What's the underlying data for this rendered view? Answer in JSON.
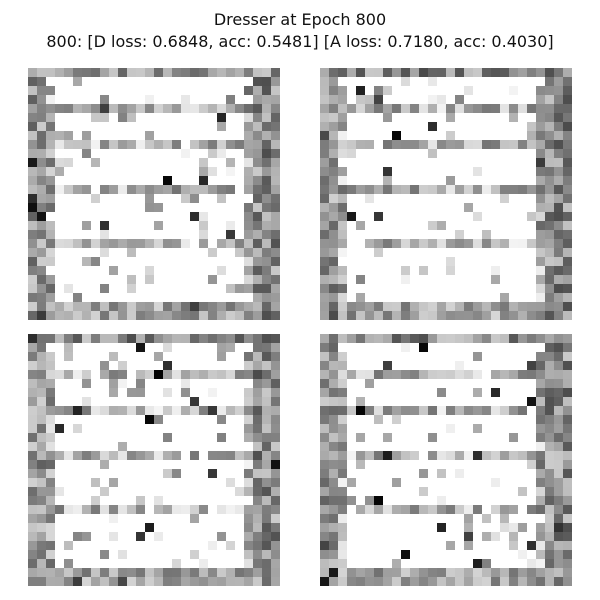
{
  "figure": {
    "title_line1": "Dresser at Epoch 800",
    "title_line2": "800: [D loss: 0.6848, acc: 0.5481]  [A loss: 0.7180, acc: 0.4030]"
  },
  "panels": [
    {
      "cmap": "gray_r",
      "background": "#ffffff",
      "ink": "#000000",
      "seed": 11
    },
    {
      "cmap": "gray_r",
      "background": "#ffffff",
      "ink": "#000000",
      "seed": 29
    },
    {
      "cmap": "gray_r",
      "background": "#ffffff",
      "ink": "#000000",
      "seed": 47
    },
    {
      "cmap": "gray_r",
      "background": "#ffffff",
      "ink": "#000000",
      "seed": 83
    }
  ]
}
